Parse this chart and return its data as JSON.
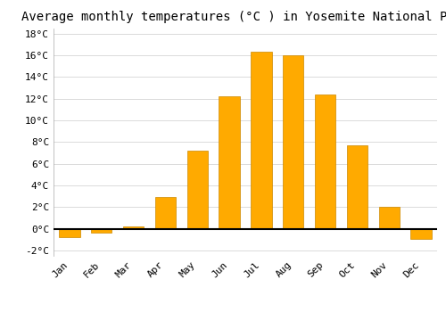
{
  "title": "Average monthly temperatures (°C ) in Yosemite National Park",
  "months": [
    "Jan",
    "Feb",
    "Mar",
    "Apr",
    "May",
    "Jun",
    "Jul",
    "Aug",
    "Sep",
    "Oct",
    "Nov",
    "Dec"
  ],
  "values": [
    -0.8,
    -0.4,
    0.2,
    2.9,
    7.2,
    12.2,
    16.3,
    16.0,
    12.4,
    7.7,
    2.0,
    -0.9
  ],
  "bar_color": "#FFAA00",
  "bar_edge_color": "#CC8800",
  "ylim": [
    -2.5,
    18.5
  ],
  "yticks": [
    -2,
    0,
    2,
    4,
    6,
    8,
    10,
    12,
    14,
    16,
    18
  ],
  "background_color": "#ffffff",
  "grid_color": "#cccccc",
  "title_fontsize": 10,
  "tick_fontsize": 8,
  "font_family": "monospace"
}
